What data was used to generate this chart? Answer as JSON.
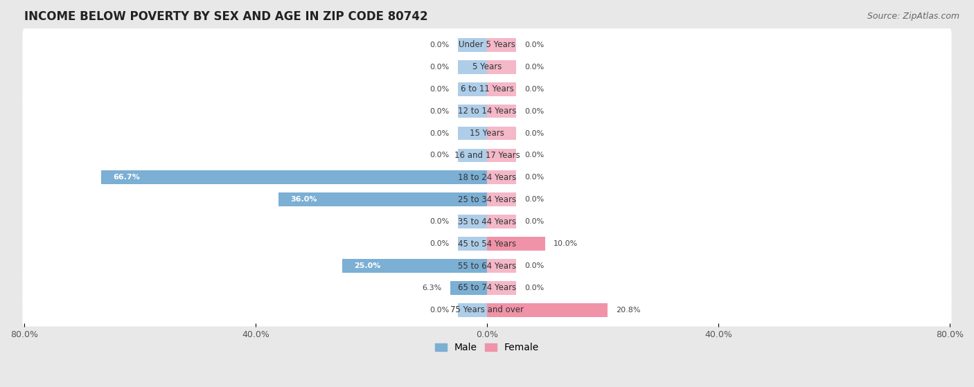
{
  "title": "INCOME BELOW POVERTY BY SEX AND AGE IN ZIP CODE 80742",
  "source": "Source: ZipAtlas.com",
  "categories": [
    "Under 5 Years",
    "5 Years",
    "6 to 11 Years",
    "12 to 14 Years",
    "15 Years",
    "16 and 17 Years",
    "18 to 24 Years",
    "25 to 34 Years",
    "35 to 44 Years",
    "45 to 54 Years",
    "55 to 64 Years",
    "65 to 74 Years",
    "75 Years and over"
  ],
  "male_values": [
    0.0,
    0.0,
    0.0,
    0.0,
    0.0,
    0.0,
    66.7,
    36.0,
    0.0,
    0.0,
    25.0,
    6.3,
    0.0
  ],
  "female_values": [
    0.0,
    0.0,
    0.0,
    0.0,
    0.0,
    0.0,
    0.0,
    0.0,
    0.0,
    10.0,
    0.0,
    0.0,
    20.8
  ],
  "male_color": "#7bafd4",
  "female_color": "#f093a8",
  "male_color_light": "#aecde8",
  "female_color_light": "#f4b8c8",
  "male_label": "Male",
  "female_label": "Female",
  "xlim": 80.0,
  "background_color": "#e8e8e8",
  "row_bg_color": "#ffffff",
  "title_fontsize": 12,
  "source_fontsize": 9
}
